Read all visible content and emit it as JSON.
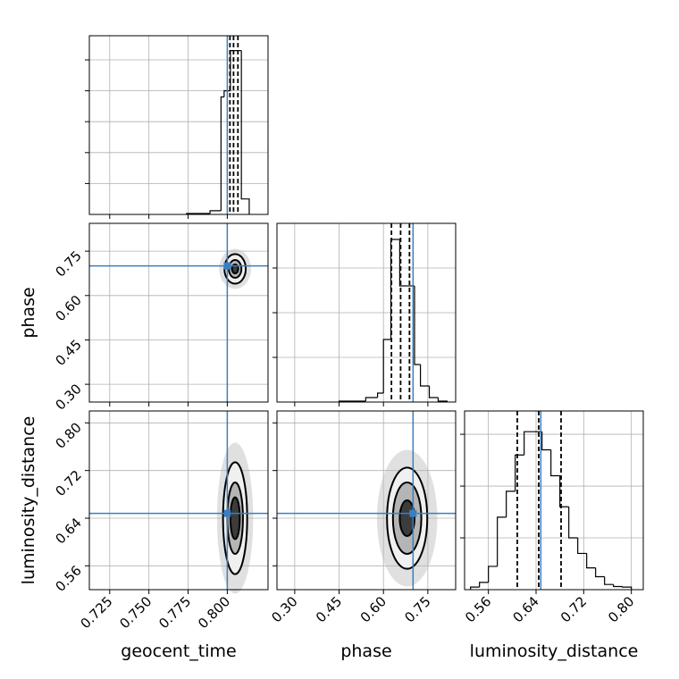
{
  "chart_data": {
    "type": "corner",
    "labels": [
      "geocent_time",
      "phase",
      "luminosity_distance"
    ],
    "lims": [
      [
        0.712,
        0.826
      ],
      [
        0.24,
        0.844
      ],
      [
        0.52,
        0.82
      ]
    ],
    "ticks": [
      [
        0.725,
        {
          "value": 0.75,
          "label": "0.750"
        },
        0.775,
        {
          "value": 0.8,
          "label": "0.800"
        }
      ],
      [
        {
          "value": 0.3,
          "label": "0.30"
        },
        0.45,
        {
          "value": 0.6,
          "label": "0.60"
        },
        0.75
      ],
      [
        0.56,
        0.64,
        0.72,
        {
          "value": 0.8,
          "label": "0.80"
        }
      ]
    ],
    "truths": [
      0.8,
      0.7,
      0.648
    ],
    "truth_color": "#3a7fc1",
    "quantiles": [
      [
        0.8017,
        0.804,
        0.8068
      ],
      [
        0.627,
        0.658,
        0.688
      ],
      [
        0.6085,
        0.6445,
        0.682
      ]
    ],
    "hists": [
      {
        "bins": [
          0.774,
          0.789,
          0.796,
          0.798,
          0.802,
          0.804,
          0.809,
          0.814
        ],
        "counts": [
          0.03,
          0.12,
          3.8,
          4.0,
          5.3,
          5.3,
          0.5
        ],
        "ylim": [
          0,
          5.78
        ],
        "yticks": [
          1,
          2,
          3,
          4,
          5
        ]
      },
      {
        "bins": [
          0.45,
          0.54,
          0.58,
          0.6,
          0.625,
          0.655,
          0.68,
          0.705,
          0.725,
          0.755,
          0.785,
          0.815
        ],
        "counts": [
          0.02,
          0.1,
          0.2,
          1.4,
          3.64,
          2.6,
          2.6,
          0.84,
          0.36,
          0.1,
          0.02
        ],
        "ylim": [
          0,
          4
        ],
        "yticks": [
          1,
          2,
          3
        ]
      },
      {
        "bins": [
          0.53,
          0.545,
          0.56,
          0.575,
          0.59,
          0.605,
          0.62,
          0.635,
          0.65,
          0.665,
          0.68,
          0.695,
          0.71,
          0.725,
          0.74,
          0.755,
          0.77,
          0.785,
          0.8
        ],
        "counts": [
          0.05,
          0.14,
          0.45,
          1.4,
          1.9,
          2.6,
          3.05,
          3.05,
          2.7,
          2.2,
          1.6,
          1.0,
          0.7,
          0.42,
          0.25,
          0.1,
          0.06,
          0.05
        ],
        "ylim": [
          0,
          3.45
        ],
        "yticks": [
          1,
          2,
          3
        ]
      }
    ],
    "contours": [
      {
        "center": [
          0.805,
          0.69
        ],
        "rx": [
          0.0068,
          0.004,
          0.002
        ],
        "ry": [
          0.05,
          0.03,
          0.015
        ]
      },
      {
        "center": [
          0.805,
          0.64
        ],
        "rx": [
          0.0077,
          0.005,
          0.003
        ],
        "ry": [
          0.094,
          0.06,
          0.035
        ]
      },
      {
        "center": [
          0.68,
          0.64
        ],
        "rx": [
          0.068,
          0.048,
          0.025
        ],
        "ry": [
          0.085,
          0.06,
          0.03
        ]
      }
    ],
    "grid": true
  }
}
